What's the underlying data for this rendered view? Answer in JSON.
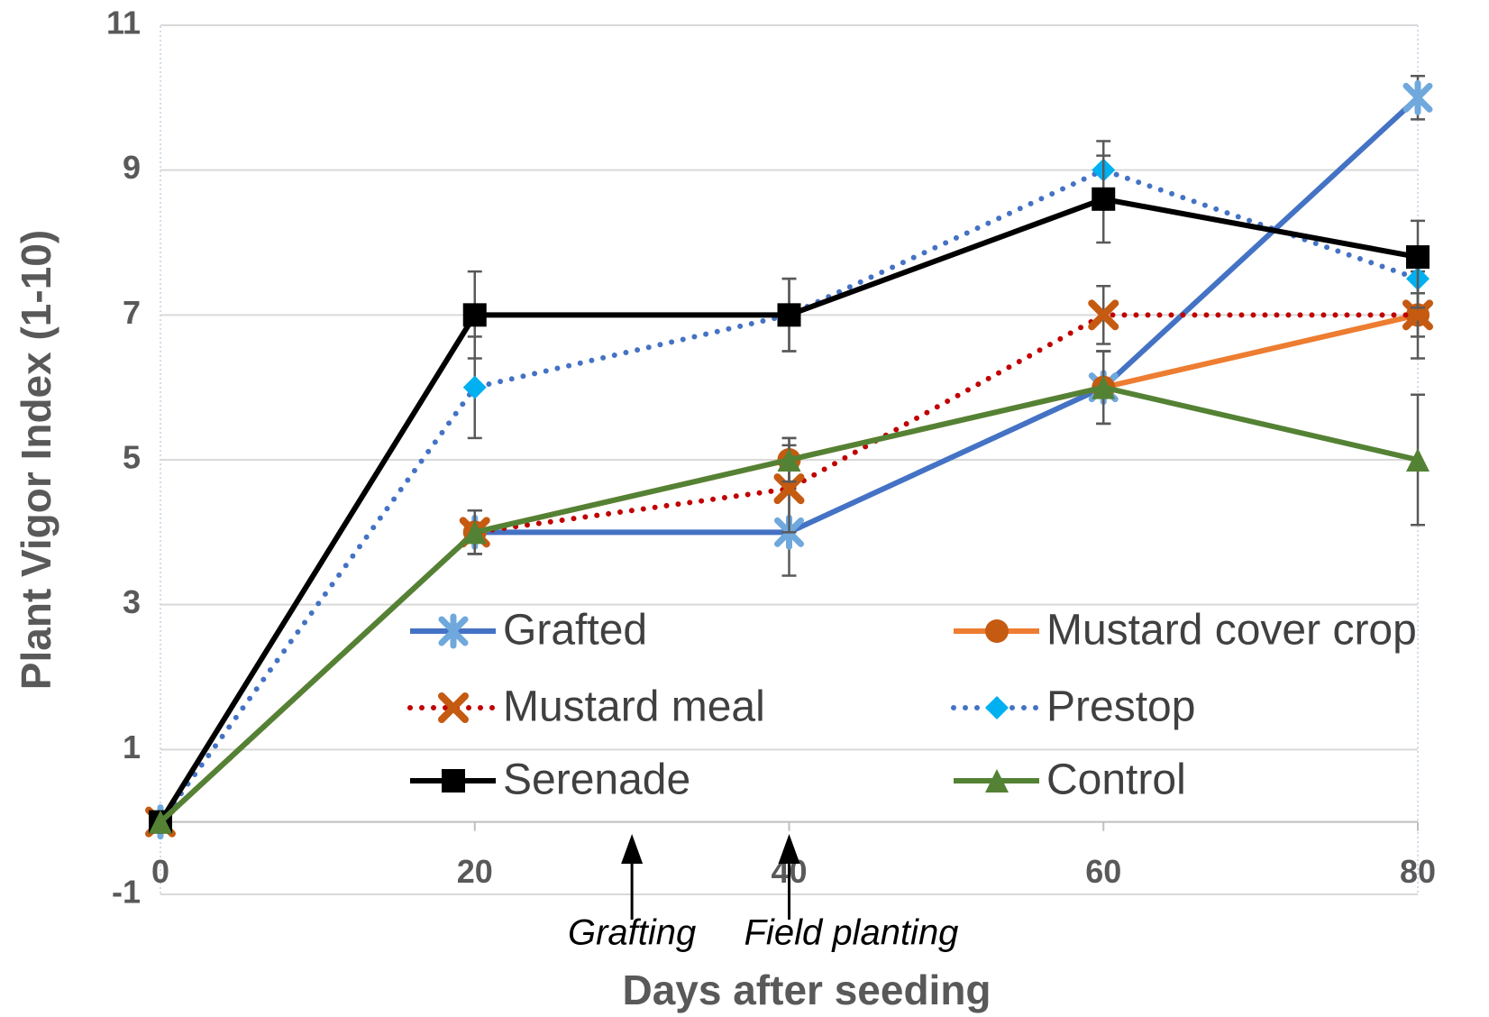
{
  "chart_data": {
    "type": "line",
    "y_label": "Plant Vigor  Index (1-10)",
    "x_label": "Days after seeding",
    "x": [
      0,
      20,
      40,
      60,
      80
    ],
    "xlim": [
      0,
      80
    ],
    "xticks": [
      0,
      20,
      40,
      60,
      80
    ],
    "ylim": [
      -1,
      11
    ],
    "yticks": [
      -1,
      1,
      3,
      5,
      7,
      9,
      11
    ],
    "grid": true,
    "legend": "bottom",
    "annotations": [
      {
        "text": "Grafting",
        "x": 30
      },
      {
        "text": "Field planting",
        "x": 40
      }
    ],
    "series": [
      {
        "name": "Grafted",
        "color": "#4472c4",
        "marker": "asterisk",
        "marker_color": "#6fa8dc",
        "dash": false,
        "values": [
          0,
          4,
          4,
          6,
          10
        ],
        "errors": [
          0,
          0.3,
          0.6,
          0.5,
          0.3
        ]
      },
      {
        "name": "Mustard cover crop",
        "color": "#ed7d31",
        "marker": "circle",
        "marker_color": "#c55a11",
        "dash": false,
        "values": [
          0,
          4,
          5,
          6,
          7
        ],
        "errors": [
          0,
          0.3,
          0.3,
          0.5,
          0.6
        ]
      },
      {
        "name": "Mustard meal",
        "color": "#c00000",
        "marker": "x",
        "marker_color": "#c55a11",
        "dash": true,
        "values": [
          0,
          4,
          4.6,
          7,
          7
        ],
        "errors": [
          0,
          0.3,
          0.6,
          0.4,
          0.3
        ]
      },
      {
        "name": "Prestop",
        "color": "#4472c4",
        "marker": "diamond",
        "marker_color": "#00b0f0",
        "dash": true,
        "values": [
          0,
          6,
          7,
          9,
          7.5
        ],
        "errors": [
          0,
          0.7,
          0.5,
          0.4,
          0.4
        ]
      },
      {
        "name": "Serenade",
        "color": "#000000",
        "marker": "square",
        "marker_color": "#000000",
        "dash": false,
        "values": [
          0,
          7,
          7,
          8.6,
          7.8
        ],
        "errors": [
          0,
          0.6,
          0.5,
          0.6,
          0.5
        ]
      },
      {
        "name": "Control",
        "color": "#548235",
        "marker": "triangle",
        "marker_color": "#548235",
        "dash": false,
        "values": [
          0,
          4,
          5,
          6,
          5
        ],
        "errors": [
          0,
          0.3,
          0.3,
          0.5,
          0.9
        ]
      }
    ]
  }
}
